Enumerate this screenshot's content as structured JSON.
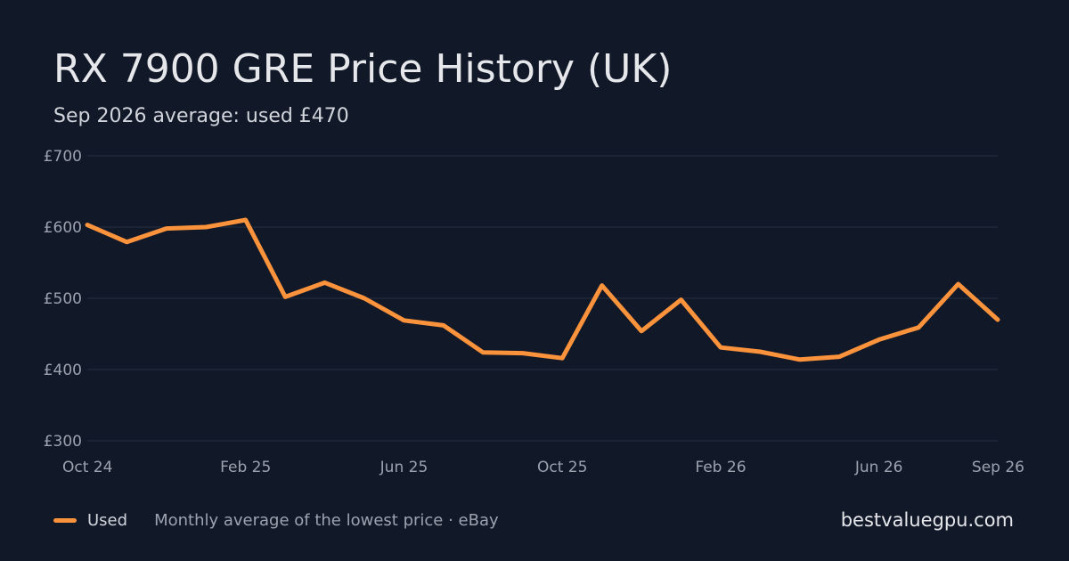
{
  "chart_data": {
    "type": "line",
    "title": "RX 7900 GRE Price History (UK)",
    "subtitle": "Sep 2026 average: used £470",
    "x": [
      "2024-10",
      "2024-11",
      "2024-12",
      "2025-01",
      "2025-02",
      "2025-03",
      "2025-04",
      "2025-05",
      "2025-06",
      "2025-07",
      "2025-08",
      "2025-09",
      "2025-10",
      "2025-11",
      "2025-12",
      "2026-01",
      "2026-02",
      "2026-03",
      "2026-04",
      "2026-05",
      "2026-06",
      "2026-07",
      "2026-08",
      "2026-09"
    ],
    "x_tick_labels": [
      "Oct 24",
      "Feb 25",
      "Jun 25",
      "Oct 25",
      "Feb 26",
      "Jun 26",
      "Sep 26"
    ],
    "x_tick_positions": [
      "2024-10",
      "2025-02",
      "2025-06",
      "2025-10",
      "2026-02",
      "2026-06",
      "2026-09"
    ],
    "y_tick_labels": [
      "£300",
      "£400",
      "£500",
      "£600",
      "£700"
    ],
    "y_tick_values": [
      300,
      400,
      500,
      600,
      700
    ],
    "ylim": [
      300,
      700
    ],
    "grid": true,
    "legend": "bottom-left",
    "series": [
      {
        "name": "Used",
        "color": "#fb923c",
        "values": [
          603,
          579,
          598,
          600,
          610,
          502,
          522,
          500,
          469,
          462,
          424,
          423,
          416,
          518,
          454,
          498,
          431,
          425,
          414,
          418,
          442,
          459,
          520,
          470
        ]
      }
    ]
  },
  "legend": {
    "note": "Monthly average of the lowest price · eBay"
  },
  "brand": "bestvaluegpu.com"
}
